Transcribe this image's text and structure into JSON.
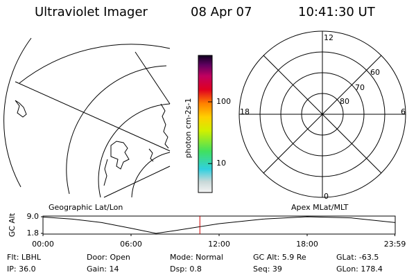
{
  "header": {
    "title": "Ultraviolet Imager",
    "date": "08 Apr 07",
    "time": "10:41:30 UT"
  },
  "colorbar": {
    "label": "photon cm-2s-1",
    "range": [
      3.4,
      565
    ],
    "log": true,
    "ticks": [
      10,
      100
    ]
  },
  "polar": {
    "mlt_labels": [
      12,
      18,
      6,
      0
    ],
    "lat_labels": [
      80,
      70,
      60
    ]
  },
  "timeline": {
    "left_label": "Geographic Lat/Lon",
    "right_label": "Apex MLat/MLT",
    "y_label": "GC Alt",
    "ylim": [
      1.8,
      9.0
    ],
    "yticks": [
      {
        "value": 9.0,
        "label": "9.0"
      },
      {
        "value": 1.8,
        "label": "1.8"
      }
    ],
    "xlim": [
      0,
      24
    ],
    "xticks": [
      {
        "value": 0,
        "label": "00:00"
      },
      {
        "value": 6,
        "label": "06:00"
      },
      {
        "value": 12,
        "label": "12:00"
      },
      {
        "value": 18,
        "label": "18:00"
      },
      {
        "value": 23.98,
        "label": "23:59"
      }
    ],
    "hours": [
      0,
      2,
      4,
      6,
      7.7,
      9,
      12,
      15,
      18,
      21,
      24
    ],
    "altitude": [
      8.9,
      8.0,
      6.5,
      4.0,
      1.8,
      3.0,
      6.0,
      8.0,
      9.0,
      8.5,
      6.5
    ],
    "current_hour": 10.69,
    "current_color": "#d00000"
  },
  "footer": [
    [
      "Flt: LBHL",
      "Door: Open",
      "Mode: Normal",
      "GC Alt: 5.9 Re",
      "GLat: -63.5"
    ],
    [
      "IP: 36.0",
      "Gain: 14",
      "Dsp:    0.8",
      "Seq: 39",
      "GLon: 178.4"
    ]
  ]
}
